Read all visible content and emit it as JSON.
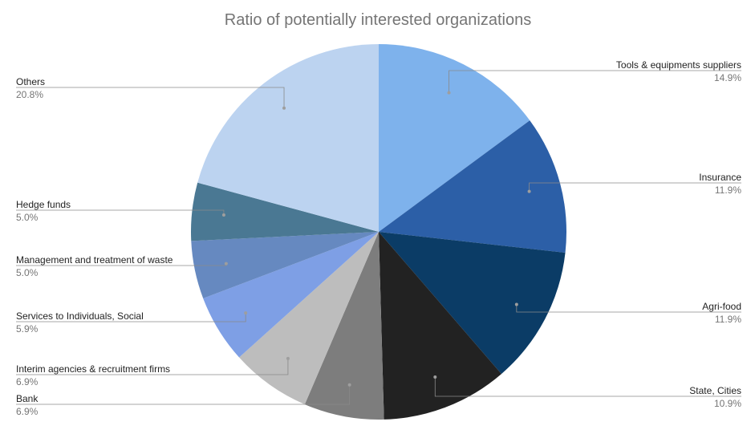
{
  "chart_data": {
    "type": "pie",
    "title": "Ratio of potentially interested organizations",
    "slices": [
      {
        "label": "Tools & equipments suppliers",
        "value": 14.9,
        "pct_label": "14.9%",
        "color": "#7eb2ec"
      },
      {
        "label": "Insurance",
        "value": 11.9,
        "pct_label": "11.9%",
        "color": "#2c5fa7"
      },
      {
        "label": "Agri-food",
        "value": 11.9,
        "pct_label": "11.9%",
        "color": "#0b3c66"
      },
      {
        "label": "State, Cities",
        "value": 10.9,
        "pct_label": "10.9%",
        "color": "#222222"
      },
      {
        "label": "Bank",
        "value": 6.9,
        "pct_label": "6.9%",
        "color": "#7d7d7d"
      },
      {
        "label": "Interim agencies & recruitment firms",
        "value": 6.9,
        "pct_label": "6.9%",
        "color": "#bdbdbd"
      },
      {
        "label": "Services to Individuals, Social",
        "value": 5.9,
        "pct_label": "5.9%",
        "color": "#7e9fe5"
      },
      {
        "label": "Management and treatment of waste",
        "value": 5.0,
        "pct_label": "5.0%",
        "color": "#6689c0"
      },
      {
        "label": "Hedge funds",
        "value": 5.0,
        "pct_label": "5.0%",
        "color": "#4a7893"
      },
      {
        "label": "Others",
        "value": 20.8,
        "pct_label": "20.8%",
        "color": "#bcd3f0"
      }
    ],
    "legend": "none",
    "labels": "outside with leader lines"
  }
}
